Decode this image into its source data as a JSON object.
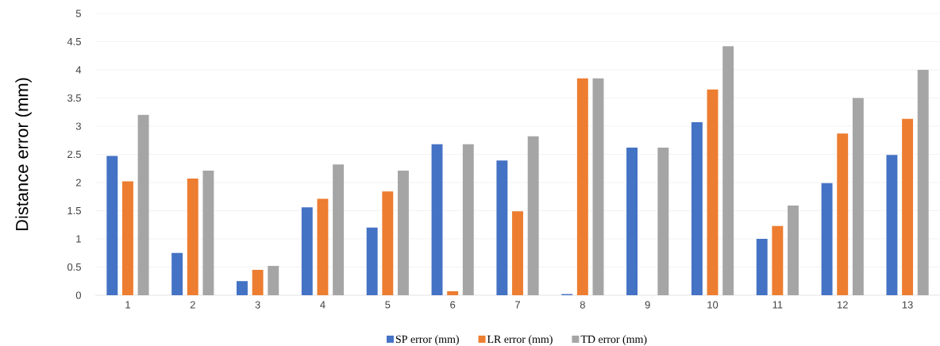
{
  "chart_data": {
    "type": "bar",
    "ylabel": "Distance error (mm)",
    "categories": [
      "1",
      "2",
      "3",
      "4",
      "5",
      "6",
      "7",
      "8",
      "9",
      "10",
      "11",
      "12",
      "13"
    ],
    "series": [
      {
        "name": "SP error (mm)",
        "color": "#4472c4",
        "values": [
          2.47,
          0.75,
          0.25,
          1.56,
          1.2,
          2.68,
          2.39,
          0.02,
          2.62,
          3.07,
          1.0,
          1.99,
          2.49
        ]
      },
      {
        "name": "LR error (mm)",
        "color": "#ed7d31",
        "values": [
          2.02,
          2.07,
          0.45,
          1.71,
          1.84,
          0.07,
          1.49,
          3.85,
          0,
          3.65,
          1.23,
          2.87,
          3.13
        ]
      },
      {
        "name": "TD error (mm)",
        "color": "#a5a5a5",
        "values": [
          3.2,
          2.21,
          0.52,
          2.32,
          2.21,
          2.68,
          2.82,
          3.85,
          2.62,
          4.42,
          1.59,
          3.5,
          4.0
        ]
      }
    ],
    "ylim": [
      0,
      5
    ],
    "yticks": [
      0,
      0.5,
      1,
      1.5,
      2,
      2.5,
      3,
      3.5,
      4,
      4.5,
      5
    ],
    "grid": "y",
    "legend": "bottom"
  }
}
